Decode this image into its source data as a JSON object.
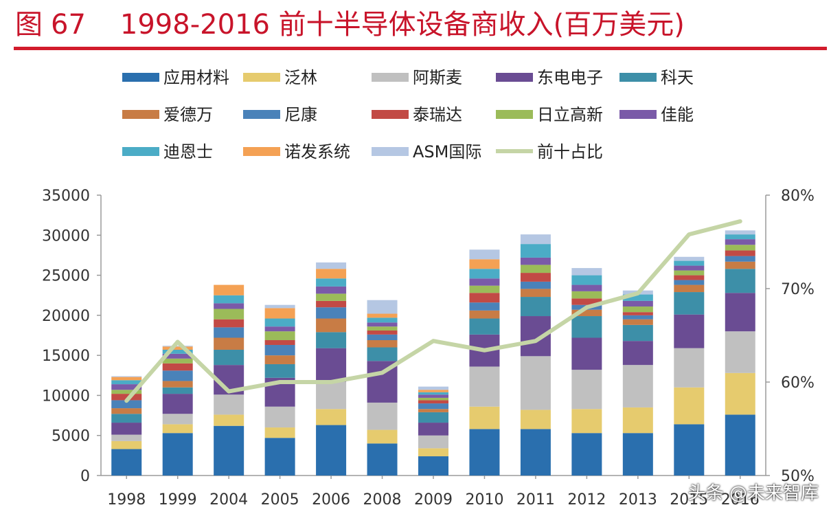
{
  "figure": {
    "label": "图",
    "number": "67",
    "title": "1998-2016 前十半导体设备商收入(百万美元)"
  },
  "watermark": "头条 @未来智库",
  "colors": {
    "title": "#c8142a",
    "rule": "#d21c2c",
    "line": "#c5d5a6",
    "axis": "#9a9a9a",
    "tick_text": "#333333"
  },
  "chart_data": {
    "type": "bar",
    "stacked": true,
    "categories": [
      "1998",
      "1999",
      "2004",
      "2005",
      "2006",
      "2008",
      "2009",
      "2010",
      "2011",
      "2012",
      "2013",
      "2015",
      "2016"
    ],
    "ylim": [
      0,
      35000
    ],
    "yticks": [
      "0",
      "5000",
      "10000",
      "15000",
      "20000",
      "25000",
      "30000",
      "35000"
    ],
    "y2lim": [
      0.5,
      0.8
    ],
    "y2ticks": [
      "50%",
      "60%",
      "70%",
      "80%"
    ],
    "grid": false,
    "legend_position": "top",
    "series": [
      {
        "name": "应用材料",
        "color": "#2a6fae",
        "values": [
          3300,
          5300,
          6200,
          4700,
          6300,
          4000,
          2400,
          5800,
          5800,
          5300,
          5300,
          6400,
          7600
        ]
      },
      {
        "name": "泛林",
        "color": "#e6cb6e",
        "values": [
          1000,
          1100,
          1400,
          1300,
          2000,
          1700,
          1000,
          2800,
          2400,
          3000,
          3200,
          4600,
          5200
        ]
      },
      {
        "name": "阿斯麦",
        "color": "#c0c0c0",
        "values": [
          800,
          1300,
          2500,
          2600,
          3400,
          3400,
          1600,
          5000,
          6700,
          4900,
          5300,
          4900,
          5200
        ]
      },
      {
        "name": "东电电子",
        "color": "#6a4c93",
        "values": [
          1500,
          2500,
          3700,
          3600,
          4200,
          5200,
          1600,
          4000,
          5000,
          4000,
          3000,
          4200,
          4800
        ]
      },
      {
        "name": "科天",
        "color": "#3d8fa8",
        "values": [
          1100,
          800,
          1900,
          1700,
          2000,
          1700,
          1300,
          2000,
          2400,
          2700,
          2000,
          2800,
          3000
        ]
      },
      {
        "name": "爱德万",
        "color": "#c87c45",
        "values": [
          700,
          800,
          1500,
          1100,
          1700,
          900,
          400,
          1000,
          1000,
          800,
          700,
          900,
          900
        ]
      },
      {
        "name": "尼康",
        "color": "#4a82b9",
        "values": [
          1000,
          1300,
          1300,
          1300,
          1400,
          700,
          700,
          1000,
          900,
          600,
          500,
          600,
          700
        ]
      },
      {
        "name": "泰瑞达",
        "color": "#c24a45",
        "values": [
          800,
          900,
          1000,
          600,
          800,
          500,
          400,
          1200,
          1100,
          800,
          400,
          600,
          700
        ]
      },
      {
        "name": "日立高新",
        "color": "#9bbb59",
        "values": [
          500,
          600,
          1300,
          1100,
          900,
          500,
          300,
          900,
          1000,
          900,
          700,
          600,
          700
        ]
      },
      {
        "name": "佳能",
        "color": "#7a5aa8",
        "values": [
          700,
          600,
          700,
          600,
          900,
          500,
          400,
          900,
          900,
          800,
          700,
          600,
          700
        ]
      },
      {
        "name": "迪恩士",
        "color": "#4bacc6",
        "values": [
          500,
          500,
          1000,
          1000,
          1000,
          600,
          300,
          1200,
          1700,
          1200,
          800,
          600,
          600
        ]
      },
      {
        "name": "诺发系统",
        "color": "#f4a154",
        "values": [
          400,
          400,
          1300,
          1300,
          1200,
          500,
          300,
          1200,
          0,
          0,
          0,
          0,
          0
        ]
      },
      {
        "name": "ASM国际",
        "color": "#b5c7e3",
        "values": [
          100,
          100,
          0,
          400,
          800,
          1700,
          400,
          1200,
          1200,
          900,
          500,
          500,
          500
        ]
      }
    ],
    "line_series": {
      "name": "前十占比",
      "axis": "secondary",
      "values": [
        0.58,
        0.643,
        0.59,
        0.6,
        0.6,
        0.61,
        0.644,
        0.634,
        0.644,
        0.68,
        0.695,
        0.758,
        0.772
      ]
    }
  }
}
